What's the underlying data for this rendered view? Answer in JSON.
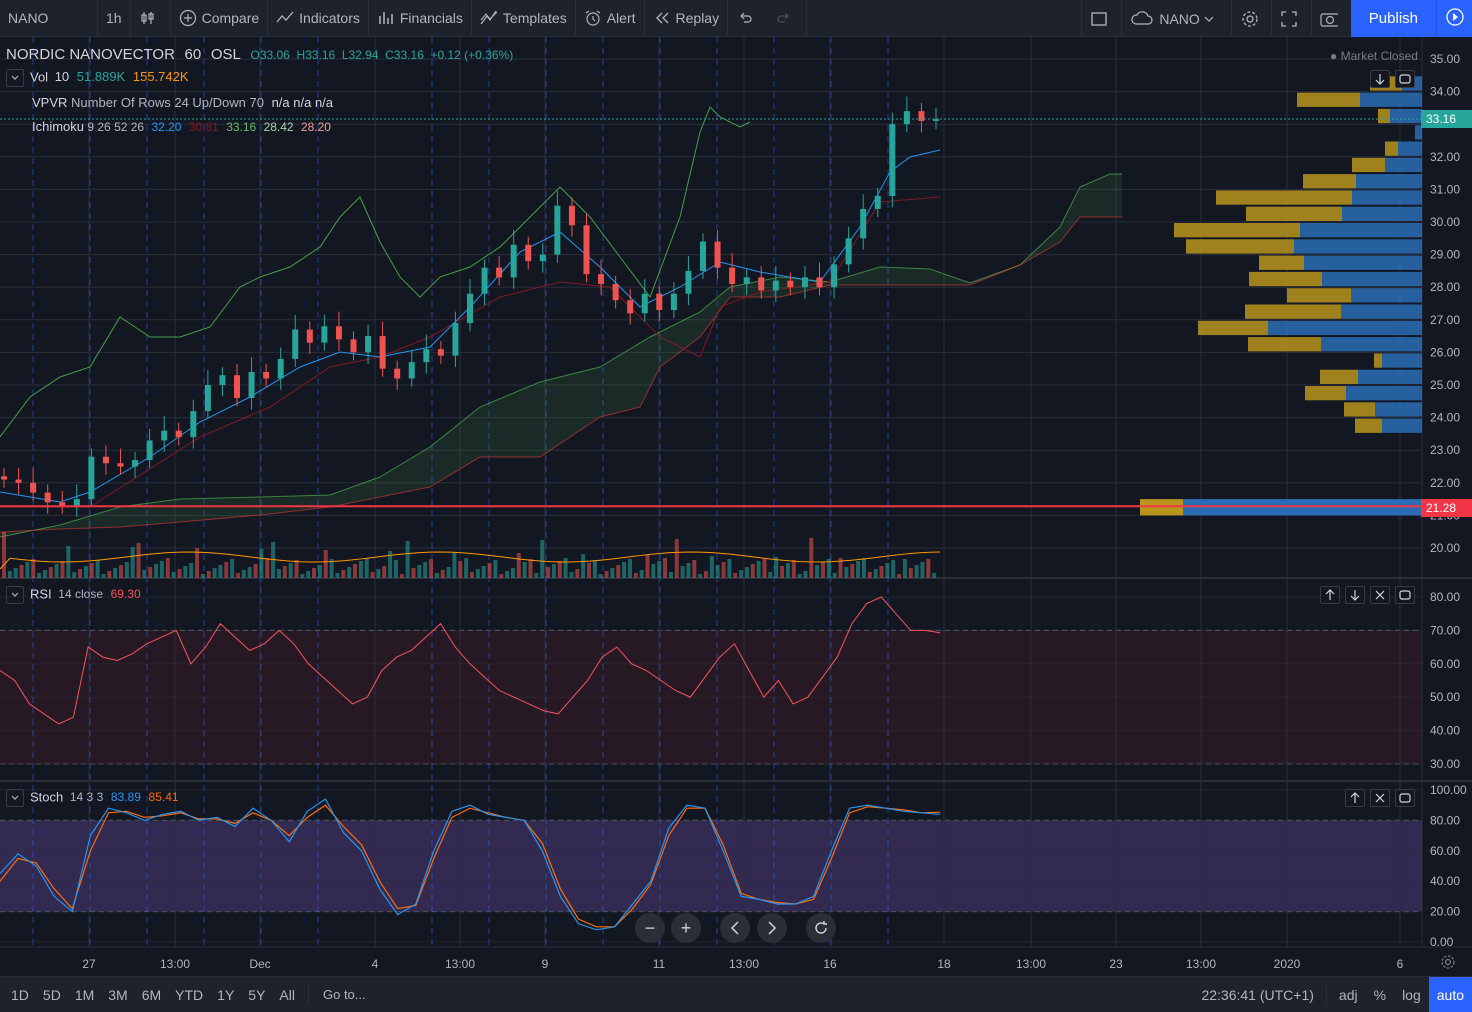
{
  "toolbar": {
    "symbol": "NANO",
    "interval": "1h",
    "compare": "Compare",
    "indicators": "Indicators",
    "financials": "Financials",
    "templates": "Templates",
    "alert": "Alert",
    "replay": "Replay",
    "layout_name": "NANO",
    "publish": "Publish"
  },
  "legend": {
    "title": "NORDIC NANOVECTOR",
    "interval": "60",
    "exchange": "OSL",
    "open": "O33.06",
    "high": "H33.16",
    "low": "L32.94",
    "close": "C33.16",
    "change": "+0.12 (+0.36%)",
    "market_status": "Market Closed",
    "vol_label": "Vol",
    "vol_param": "10",
    "vol_val1": "51.889K",
    "vol_val2": "155.742K",
    "vpvr_label": "VPVR",
    "vpvr_params": "Number Of Rows 24 Up/Down 70",
    "vpvr_values": "n/a n/a n/a",
    "ichi_label": "Ichimoku",
    "ichi_params": "9 26 52 26",
    "ichi_v1": "32.20",
    "ichi_v2": "30.81",
    "ichi_v3": "33.16",
    "ichi_v4": "28.42",
    "ichi_v5": "28.20"
  },
  "rsi_legend": {
    "label": "RSI",
    "params": "14 close",
    "value": "69.30"
  },
  "stoch_legend": {
    "label": "Stoch",
    "params": "14 3 3",
    "k": "83.89",
    "d": "85.41"
  },
  "price_axis": {
    "main": [
      "35.00",
      "34.00",
      "33.00",
      "32.00",
      "31.00",
      "30.00",
      "29.00",
      "28.00",
      "27.00",
      "26.00",
      "25.00",
      "24.00",
      "23.00",
      "22.00",
      "21.00",
      "20.00"
    ],
    "current_price": "33.16",
    "line_price": "21.28",
    "rsi": [
      "80.00",
      "70.00",
      "60.00",
      "50.00",
      "40.00",
      "30.00"
    ],
    "stoch": [
      "100.00",
      "80.00",
      "60.00",
      "40.00",
      "20.00",
      "0.00"
    ]
  },
  "time_axis": [
    "27",
    "13:00",
    "Dec",
    "4",
    "13:00",
    "9",
    "11",
    "13:00",
    "16",
    "18",
    "13:00",
    "23",
    "13:00",
    "2020",
    "6"
  ],
  "bottom": {
    "ranges": [
      "1D",
      "5D",
      "1M",
      "3M",
      "6M",
      "YTD",
      "1Y",
      "5Y",
      "All"
    ],
    "goto": "Go to...",
    "clock": "22:36:41 (UTC+1)",
    "adj": "adj",
    "percent": "%",
    "log": "log",
    "auto": "auto"
  },
  "colors": {
    "bg": "#131722",
    "up": "#26a69a",
    "down": "#ef5350",
    "accent": "#2962ff",
    "vpvr_up": "#2a6db5",
    "vpvr_down": "#b8941c"
  },
  "chart_data": {
    "type": "candlestick",
    "symbol": "NORDIC NANOVECTOR",
    "interval": "60",
    "ylim": [
      19.2,
      35.5
    ],
    "close_approx": [
      22.1,
      22.0,
      21.7,
      21.4,
      21.3,
      21.5,
      22.8,
      22.6,
      22.5,
      22.7,
      23.3,
      23.6,
      23.4,
      24.2,
      25.0,
      25.3,
      24.6,
      25.4,
      25.2,
      25.8,
      26.7,
      26.3,
      26.8,
      26.4,
      26.0,
      26.5,
      25.5,
      25.2,
      25.7,
      26.1,
      25.9,
      26.9,
      27.8,
      28.6,
      28.3,
      29.3,
      28.8,
      29.0,
      30.5,
      29.9,
      28.4,
      28.1,
      27.6,
      27.2,
      27.8,
      27.3,
      27.8,
      28.5,
      29.4,
      28.6,
      28.1,
      28.3,
      27.9,
      28.2,
      28.0,
      28.3,
      28.0,
      28.7,
      29.5,
      30.4,
      30.8,
      33.0,
      33.4,
      33.1,
      33.16
    ],
    "volume_note": "volume histogram shown beneath candles",
    "rsi_approx": [
      58,
      55,
      48,
      45,
      42,
      44,
      65,
      62,
      61,
      63,
      66,
      68,
      70,
      60,
      65,
      72,
      68,
      64,
      66,
      70,
      66,
      60,
      56,
      52,
      48,
      50,
      58,
      62,
      64,
      68,
      72,
      65,
      60,
      56,
      52,
      50,
      48,
      46,
      45,
      50,
      55,
      62,
      65,
      60,
      58,
      55,
      52,
      50,
      56,
      62,
      66,
      58,
      50,
      55,
      48,
      50,
      56,
      62,
      72,
      78,
      80,
      75,
      70,
      70,
      69.3
    ],
    "stoch_k_approx": [
      45,
      58,
      50,
      30,
      20,
      70,
      88,
      85,
      80,
      84,
      86,
      80,
      82,
      76,
      88,
      80,
      66,
      86,
      94,
      72,
      60,
      35,
      18,
      25,
      60,
      86,
      90,
      84,
      82,
      80,
      60,
      30,
      12,
      8,
      10,
      25,
      40,
      75,
      90,
      88,
      60,
      30,
      28,
      25,
      25,
      30,
      60,
      88,
      90,
      88,
      86,
      85,
      84
    ],
    "stoch_d_approx": [
      40,
      55,
      52,
      35,
      22,
      60,
      85,
      86,
      82,
      83,
      85,
      81,
      81,
      78,
      85,
      80,
      70,
      82,
      90,
      76,
      64,
      40,
      22,
      24,
      55,
      82,
      88,
      85,
      82,
      80,
      65,
      35,
      15,
      10,
      10,
      22,
      38,
      70,
      88,
      88,
      64,
      32,
      28,
      26,
      25,
      28,
      55,
      85,
      89,
      88,
      87,
      85,
      85.41
    ]
  }
}
